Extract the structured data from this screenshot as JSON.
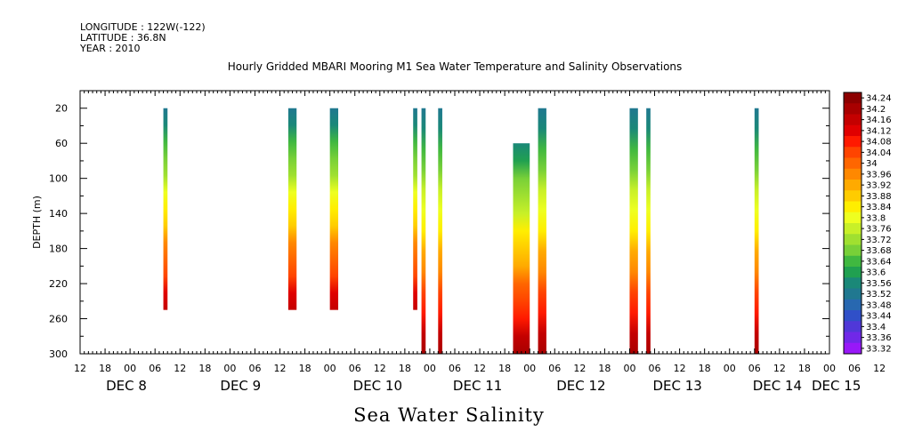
{
  "header": {
    "longitude": "LONGITUDE : 122W(-122)",
    "latitude": "LATITUDE : 36.8N",
    "year": "YEAR : 2010"
  },
  "footer_label": "Sea Water Salinity",
  "chart_data": {
    "type": "heatmap",
    "title": "Hourly Gridded MBARI Mooring M1 Sea Water Temperature and Salinity Observations",
    "xlabel": "",
    "ylabel": "DEPTH (m)",
    "x_range_hours": [
      -12,
      168
    ],
    "ylim": [
      300,
      0
    ],
    "y_ticks": [
      20,
      60,
      100,
      140,
      180,
      220,
      260,
      300
    ],
    "x_hour_ticks": [
      "12",
      "18",
      "00",
      "06",
      "12",
      "18",
      "00",
      "06",
      "12",
      "18",
      "00",
      "06",
      "12",
      "18",
      "00",
      "06",
      "12",
      "18",
      "00",
      "06",
      "12",
      "18",
      "00",
      "06",
      "12",
      "18",
      "00",
      "06",
      "12",
      "18",
      "00",
      "06",
      "12"
    ],
    "day_labels": [
      "DEC 8",
      "DEC 9",
      "DEC 10",
      "DEC 11",
      "DEC 12",
      "DEC 13",
      "DEC 14",
      "DEC 15"
    ],
    "colorbar_levels": [
      "34.24",
      "34.2",
      "34.16",
      "34.12",
      "34.08",
      "34.04",
      "34",
      "33.96",
      "33.92",
      "33.88",
      "33.84",
      "33.8",
      "33.76",
      "33.72",
      "33.68",
      "33.64",
      "33.6",
      "33.56",
      "33.52",
      "33.48",
      "33.44",
      "33.4",
      "33.36",
      "33.32"
    ],
    "colorbar_colors": [
      "#8c0000",
      "#a80000",
      "#c40000",
      "#e00000",
      "#ff1a00",
      "#ff4400",
      "#ff6600",
      "#ff8800",
      "#ffaa00",
      "#ffcc00",
      "#ffee00",
      "#eeff20",
      "#c8f028",
      "#a0e030",
      "#78d038",
      "#40b840",
      "#20a050",
      "#1a8878",
      "#207890",
      "#2868b0",
      "#3050c8",
      "#5038d8",
      "#7028e8",
      "#9818f8"
    ],
    "profiles": [
      {
        "start_hour": 8,
        "end_hour": 9,
        "depth_top": 20,
        "depth_bottom": 250,
        "salinity_top": 33.52,
        "salinity_bottom": 34.16
      },
      {
        "start_hour": 38,
        "end_hour": 40,
        "depth_top": 20,
        "depth_bottom": 250,
        "salinity_top": 33.52,
        "salinity_bottom": 34.16
      },
      {
        "start_hour": 48,
        "end_hour": 50,
        "depth_top": 20,
        "depth_bottom": 250,
        "salinity_top": 33.52,
        "salinity_bottom": 34.16
      },
      {
        "start_hour": 68,
        "end_hour": 69,
        "depth_top": 20,
        "depth_bottom": 250,
        "salinity_top": 33.52,
        "salinity_bottom": 34.16
      },
      {
        "start_hour": 70,
        "end_hour": 71,
        "depth_top": 20,
        "depth_bottom": 300,
        "salinity_top": 33.52,
        "salinity_bottom": 34.2
      },
      {
        "start_hour": 74,
        "end_hour": 75,
        "depth_top": 20,
        "depth_bottom": 300,
        "salinity_top": 33.52,
        "salinity_bottom": 34.2
      },
      {
        "start_hour": 92,
        "end_hour": 96,
        "depth_top": 60,
        "depth_bottom": 300,
        "salinity_top": 33.56,
        "salinity_bottom": 34.2
      },
      {
        "start_hour": 98,
        "end_hour": 100,
        "depth_top": 20,
        "depth_bottom": 300,
        "salinity_top": 33.52,
        "salinity_bottom": 34.2
      },
      {
        "start_hour": 120,
        "end_hour": 122,
        "depth_top": 20,
        "depth_bottom": 300,
        "salinity_top": 33.52,
        "salinity_bottom": 34.2
      },
      {
        "start_hour": 124,
        "end_hour": 125,
        "depth_top": 20,
        "depth_bottom": 300,
        "salinity_top": 33.52,
        "salinity_bottom": 34.2
      },
      {
        "start_hour": 150,
        "end_hour": 151,
        "depth_top": 20,
        "depth_bottom": 300,
        "salinity_top": 33.52,
        "salinity_bottom": 34.2
      }
    ]
  }
}
